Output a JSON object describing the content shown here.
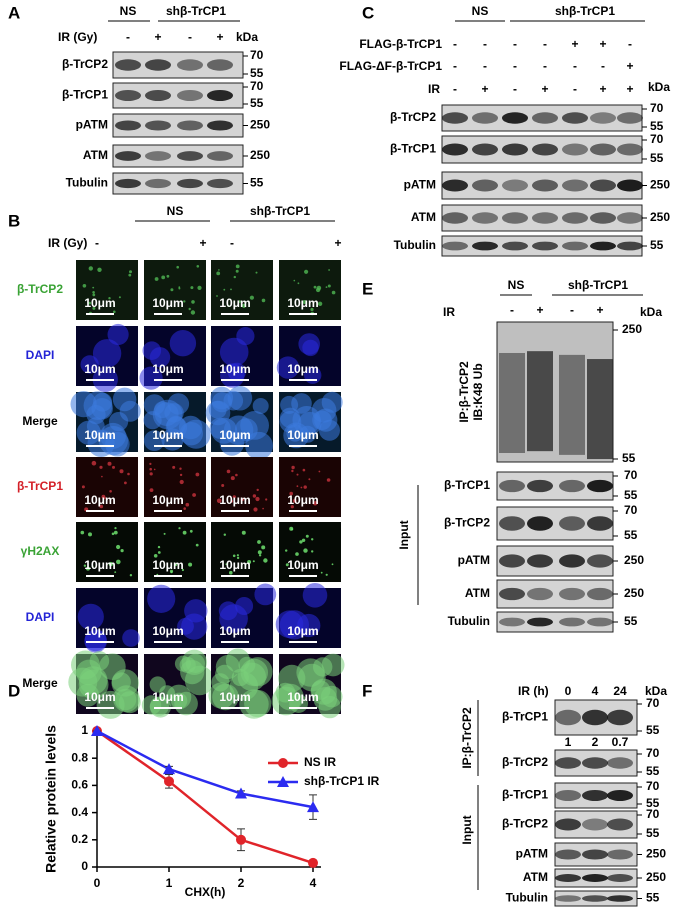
{
  "panel_a": {
    "label": "A",
    "groups": [
      "NS",
      "shβ-TrCP1"
    ],
    "ir_label": "IR (Gy)",
    "ir": [
      "-",
      "+",
      "-",
      "+"
    ],
    "kda": "kDa",
    "rows": [
      {
        "name": "β-TrCP2",
        "markers": [
          70,
          55
        ]
      },
      {
        "name": "β-TrCP1",
        "markers": [
          70,
          55
        ]
      },
      {
        "name": "pATM",
        "markers": [
          250
        ]
      },
      {
        "name": "ATM",
        "markers": [
          250
        ]
      },
      {
        "name": "Tubulin",
        "markers": [
          55
        ]
      }
    ]
  },
  "panel_b": {
    "label": "B",
    "groups": [
      "NS",
      "shβ-TrCP1"
    ],
    "ir_label": "IR (Gy)",
    "ir": [
      "-",
      "+",
      "-",
      "+"
    ],
    "scale_bar": "10μm",
    "rows": [
      "β-TrCP2",
      "DAPI",
      "Merge",
      "β-TrCP1",
      "γH2AX",
      "DAPI",
      "Merge"
    ]
  },
  "panel_c": {
    "label": "C",
    "groups": [
      "NS",
      "shβ-TrCP1"
    ],
    "kda": "kDa",
    "conditions": [
      {
        "name": "FLAG-β-TrCP1",
        "signs": [
          "-",
          "-",
          "-",
          "-",
          "+",
          "+",
          "-"
        ]
      },
      {
        "name": "FLAG-ΔF-β-TrCP1",
        "signs": [
          "-",
          "-",
          "-",
          "-",
          "-",
          "-",
          "+"
        ]
      },
      {
        "name": "IR",
        "signs": [
          "-",
          "+",
          "-",
          "+",
          "-",
          "+",
          "+"
        ]
      }
    ],
    "rows": [
      {
        "name": "β-TrCP2",
        "markers": [
          70,
          55
        ]
      },
      {
        "name": "β-TrCP1",
        "markers": [
          70,
          55
        ]
      },
      {
        "name": "pATM",
        "markers": [
          250
        ]
      },
      {
        "name": "ATM",
        "markers": [
          250
        ]
      },
      {
        "name": "Tubulin",
        "markers": [
          55
        ]
      }
    ]
  },
  "chart_data": {
    "type": "line",
    "panel_label": "D",
    "x_label": "CHX(h)",
    "y_label": "Relative protein levels",
    "categories": [
      "0",
      "1",
      "2",
      "4"
    ],
    "ylim": [
      0,
      1
    ],
    "yticks": [
      0,
      0.2,
      0.4,
      0.6,
      0.8,
      1
    ],
    "legend": "upper right",
    "series": [
      {
        "name": "NS IR",
        "color": "#e0242a",
        "marker": "circle",
        "values": [
          1,
          0.63,
          0.2,
          0.03
        ],
        "errors": [
          0,
          0.05,
          0.08,
          0.02
        ]
      },
      {
        "name": "shβ-TrCP1 IR",
        "color": "#2b2bf0",
        "marker": "triangle",
        "values": [
          1,
          0.72,
          0.54,
          0.44
        ],
        "errors": [
          0,
          0.02,
          0.02,
          0.09
        ]
      }
    ]
  },
  "panel_e": {
    "label": "E",
    "groups": [
      "NS",
      "shβ-TrCP1"
    ],
    "ir_label": "IR",
    "ir": [
      "-",
      "+",
      "-",
      "+"
    ],
    "kda": "kDa",
    "ip_label": [
      "IP:β-TrCP2",
      "IB:K48 Ub"
    ],
    "ip_markers": [
      250,
      55
    ],
    "input_label": "Input",
    "input_rows": [
      {
        "name": "β-TrCP1",
        "markers": [
          70,
          55
        ]
      },
      {
        "name": "β-TrCP2",
        "markers": [
          70,
          55
        ]
      },
      {
        "name": "pATM",
        "markers": [
          250
        ]
      },
      {
        "name": "ATM",
        "markers": [
          250
        ]
      },
      {
        "name": "Tubulin",
        "markers": [
          55
        ]
      }
    ]
  },
  "panel_f": {
    "label": "F",
    "ir_label": "IR (h)",
    "ir": [
      0,
      4,
      24
    ],
    "kda": "kDa",
    "ip_label": "IP:β-TrCP2",
    "input_label": "Input",
    "ip_rows": [
      {
        "name": "β-TrCP1",
        "markers": [
          70,
          55
        ],
        "quant": [
          1,
          2,
          0.7
        ]
      },
      {
        "name": "β-TrCP2",
        "markers": [
          70,
          55
        ]
      }
    ],
    "input_rows": [
      {
        "name": "β-TrCP1",
        "markers": [
          70,
          55
        ]
      },
      {
        "name": "β-TrCP2",
        "markers": [
          70,
          55
        ]
      },
      {
        "name": "pATM",
        "markers": [
          250
        ]
      },
      {
        "name": "ATM",
        "markers": [
          250
        ]
      },
      {
        "name": "Tubulin",
        "markers": [
          55
        ]
      }
    ]
  }
}
